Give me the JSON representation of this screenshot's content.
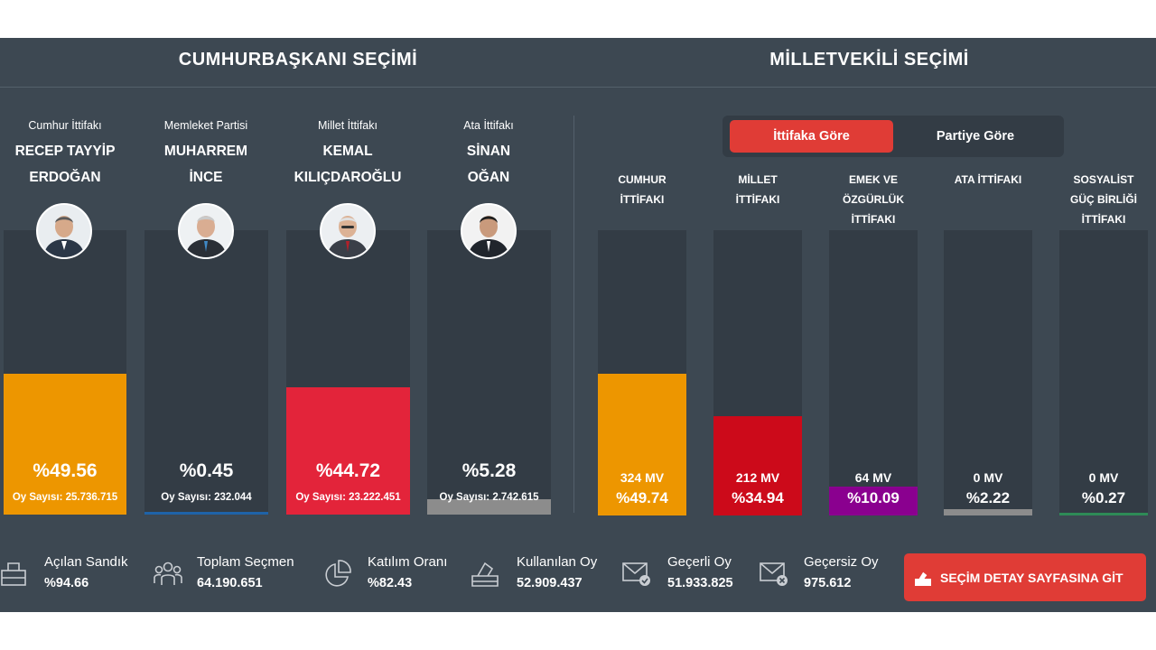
{
  "presidential": {
    "title": "CUMHURBAŞKANI SEÇİMİ",
    "candidates": [
      {
        "party": "Cumhur İttifakı",
        "name_line1": "RECEP TAYYİP",
        "name_line2": "ERDOĞAN",
        "percent_label": "%49.56",
        "share": 49.56,
        "votes_label": "Oy Sayısı: 25.736.715",
        "color": "#ed9600"
      },
      {
        "party": "Memleket Partisi",
        "name_line1": "MUHARREM",
        "name_line2": "İNCE",
        "percent_label": "%0.45",
        "share": 0.45,
        "votes_label": "Oy Sayısı: 232.044",
        "color": "#1f63a8"
      },
      {
        "party": "Millet İttifakı",
        "name_line1": "KEMAL",
        "name_line2": "KILIÇDAROĞLU",
        "percent_label": "%44.72",
        "share": 44.72,
        "votes_label": "Oy Sayısı: 23.222.451",
        "color": "#e3243a"
      },
      {
        "party": "Ata İttifakı",
        "name_line1": "SİNAN",
        "name_line2": "OĞAN",
        "percent_label": "%5.28",
        "share": 5.28,
        "votes_label": "Oy Sayısı: 2.742.615",
        "color": "#8c8c8c"
      }
    ]
  },
  "parliamentary": {
    "title": "MİLLETVEKİLİ SEÇİMİ",
    "toggle": {
      "active_label": "İttifaka Göre",
      "inactive_label": "Partiye Göre"
    },
    "alliances": [
      {
        "label_lines": [
          "CUMHUR",
          "İTTİFAKI"
        ],
        "mv_label": "324 MV",
        "percent_label": "%49.74",
        "share": 49.74,
        "color": "#ed9600"
      },
      {
        "label_lines": [
          "MİLLET",
          "İTTİFAKI"
        ],
        "mv_label": "212 MV",
        "percent_label": "%34.94",
        "share": 34.94,
        "color": "#cc0a1a"
      },
      {
        "label_lines": [
          "EMEK VE",
          "ÖZGÜRLÜK",
          "İTTİFAKI"
        ],
        "mv_label": "64 MV",
        "percent_label": "%10.09",
        "share": 10.09,
        "color": "#8a008f"
      },
      {
        "label_lines": [
          "ATA İTTİFAKI"
        ],
        "mv_label": "0 MV",
        "percent_label": "%2.22",
        "share": 2.22,
        "color": "#8c8c8c"
      },
      {
        "label_lines": [
          "SOSYALİST",
          "GÜÇ BİRLİĞİ",
          "İTTİFAKI"
        ],
        "mv_label": "0 MV",
        "percent_label": "%0.27",
        "share": 0.27,
        "color": "#2e8b57"
      }
    ]
  },
  "stats": [
    {
      "icon": "ballot-box-icon",
      "label": "Açılan Sandık",
      "value": "%94.66"
    },
    {
      "icon": "voters-group-icon",
      "label": "Toplam Seçmen",
      "value": "64.190.651"
    },
    {
      "icon": "pie-chart-icon",
      "label": "Katılım Oranı",
      "value": "%82.43"
    },
    {
      "icon": "ballot-drop-icon",
      "label": "Kullanılan Oy",
      "value": "52.909.437"
    },
    {
      "icon": "envelope-check-icon",
      "label": "Geçerli Oy",
      "value": "51.933.825"
    },
    {
      "icon": "envelope-cross-icon",
      "label": "Geçersiz Oy",
      "value": "975.612"
    }
  ],
  "cta": {
    "label": "SEÇİM DETAY SAYFASINA GİT"
  },
  "colors": {
    "background": "#3d4852",
    "track": "#333c45",
    "accent": "#e03c36"
  }
}
